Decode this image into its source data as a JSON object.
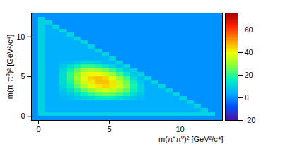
{
  "chart_data": {
    "type": "heatmap",
    "xlabel": "m(π⁺π⁰)² [GeV²/c⁴]",
    "ylabel": "m(π⁻π⁰)² [GeV²/c⁴]",
    "xlim": [
      -0.5,
      13
    ],
    "ylim": [
      -0.5,
      13
    ],
    "xticks": [
      0,
      5,
      10
    ],
    "yticks": [
      0,
      5,
      10
    ],
    "xbins": [
      -0.5,
      0,
      0.5,
      1,
      1.5,
      2,
      2.5,
      3,
      3.5,
      4,
      4.5,
      5,
      5.5,
      6,
      6.5,
      7,
      7.5,
      8,
      8.5,
      9,
      9.5,
      10,
      10.5,
      11,
      11.5,
      12,
      12.5,
      13
    ],
    "ybins": [
      -0.5,
      0,
      0.5,
      1,
      1.5,
      2,
      2.5,
      3,
      3.5,
      4,
      4.5,
      5,
      5.5,
      6,
      6.5,
      7,
      7.5,
      8,
      8.5,
      9,
      9.5,
      10,
      10.5,
      11,
      11.5,
      12,
      12.5,
      13
    ],
    "z": [
      [
        0,
        0,
        0,
        0,
        0,
        0,
        0,
        0,
        0,
        0,
        0,
        0,
        0,
        0,
        0,
        0,
        0,
        0,
        0,
        0,
        0,
        0,
        0,
        0,
        0,
        0,
        0
      ],
      [
        0,
        10,
        10,
        10,
        10,
        10,
        10,
        10,
        10,
        10,
        10,
        10,
        10,
        10,
        10,
        10,
        10,
        10,
        10,
        10,
        10,
        10,
        10,
        10,
        10,
        10,
        0
      ],
      [
        0,
        10,
        4,
        4,
        4,
        4,
        4,
        4,
        4,
        4,
        4,
        4,
        4,
        4,
        4,
        4,
        4,
        4,
        4,
        4,
        4,
        4,
        4,
        4,
        10,
        0,
        0
      ],
      [
        0,
        10,
        4,
        4,
        4,
        4,
        4,
        4,
        4,
        4,
        4,
        4,
        4,
        4,
        4,
        4,
        4,
        4,
        4,
        4,
        4,
        4,
        4,
        10,
        0,
        0,
        0
      ],
      [
        0,
        10,
        4,
        4,
        4,
        4,
        4,
        4,
        4,
        4,
        4,
        4,
        4,
        4,
        4,
        4,
        4,
        4,
        4,
        4,
        4,
        4,
        10,
        0,
        0,
        0,
        0
      ],
      [
        0,
        10,
        4,
        4,
        5,
        6,
        8,
        10,
        12,
        14,
        15,
        14,
        12,
        10,
        8,
        6,
        4,
        4,
        4,
        4,
        4,
        10,
        0,
        0,
        0,
        0,
        0
      ],
      [
        0,
        10,
        4,
        4,
        6,
        8,
        12,
        16,
        20,
        24,
        26,
        25,
        22,
        18,
        12,
        8,
        4,
        4,
        4,
        4,
        10,
        0,
        0,
        0,
        0,
        0,
        0
      ],
      [
        0,
        10,
        4,
        4,
        8,
        12,
        18,
        24,
        30,
        34,
        36,
        34,
        30,
        24,
        16,
        10,
        4,
        4,
        4,
        10,
        0,
        0,
        0,
        0,
        0,
        0,
        0
      ],
      [
        0,
        10,
        4,
        4,
        10,
        16,
        24,
        32,
        38,
        42,
        44,
        42,
        36,
        28,
        18,
        10,
        4,
        4,
        10,
        0,
        0,
        0,
        0,
        0,
        0,
        0,
        0
      ],
      [
        0,
        10,
        4,
        4,
        12,
        18,
        28,
        36,
        42,
        46,
        46,
        42,
        34,
        26,
        16,
        8,
        4,
        10,
        0,
        0,
        0,
        0,
        0,
        0,
        0,
        0,
        0
      ],
      [
        0,
        10,
        4,
        4,
        12,
        20,
        30,
        38,
        44,
        46,
        44,
        38,
        30,
        22,
        12,
        6,
        10,
        0,
        0,
        0,
        0,
        0,
        0,
        0,
        0,
        0,
        0
      ],
      [
        0,
        10,
        4,
        4,
        12,
        20,
        28,
        36,
        40,
        40,
        36,
        30,
        22,
        14,
        8,
        10,
        0,
        0,
        0,
        0,
        0,
        0,
        0,
        0,
        0,
        0,
        0
      ],
      [
        0,
        10,
        4,
        4,
        10,
        16,
        24,
        30,
        32,
        30,
        26,
        20,
        14,
        8,
        10,
        0,
        0,
        0,
        0,
        0,
        0,
        0,
        0,
        0,
        0,
        0,
        0
      ],
      [
        0,
        10,
        4,
        4,
        8,
        12,
        16,
        20,
        20,
        18,
        14,
        10,
        6,
        10,
        0,
        0,
        0,
        0,
        0,
        0,
        0,
        0,
        0,
        0,
        0,
        0,
        0
      ],
      [
        0,
        10,
        4,
        4,
        5,
        6,
        8,
        10,
        10,
        8,
        6,
        5,
        10,
        0,
        0,
        0,
        0,
        0,
        0,
        0,
        0,
        0,
        0,
        0,
        0,
        0,
        0
      ],
      [
        0,
        10,
        4,
        4,
        4,
        4,
        4,
        4,
        4,
        4,
        4,
        10,
        0,
        0,
        0,
        0,
        0,
        0,
        0,
        0,
        0,
        0,
        0,
        0,
        0,
        0,
        0
      ],
      [
        0,
        10,
        4,
        4,
        4,
        4,
        4,
        4,
        4,
        4,
        10,
        0,
        0,
        0,
        0,
        0,
        0,
        0,
        0,
        0,
        0,
        0,
        0,
        0,
        0,
        0,
        0
      ],
      [
        0,
        10,
        4,
        4,
        4,
        4,
        4,
        4,
        4,
        10,
        0,
        0,
        0,
        0,
        0,
        0,
        0,
        0,
        0,
        0,
        0,
        0,
        0,
        0,
        0,
        0,
        0
      ],
      [
        0,
        10,
        4,
        4,
        4,
        4,
        4,
        4,
        10,
        0,
        0,
        0,
        0,
        0,
        0,
        0,
        0,
        0,
        0,
        0,
        0,
        0,
        0,
        0,
        0,
        0,
        0
      ],
      [
        0,
        10,
        4,
        4,
        4,
        4,
        4,
        10,
        0,
        0,
        0,
        0,
        0,
        0,
        0,
        0,
        0,
        0,
        0,
        0,
        0,
        0,
        0,
        0,
        0,
        0,
        0
      ],
      [
        0,
        10,
        4,
        4,
        4,
        4,
        10,
        0,
        0,
        0,
        0,
        0,
        0,
        0,
        0,
        0,
        0,
        0,
        0,
        0,
        0,
        0,
        0,
        0,
        0,
        0,
        0
      ],
      [
        0,
        10,
        4,
        4,
        4,
        10,
        0,
        0,
        0,
        0,
        0,
        0,
        0,
        0,
        0,
        0,
        0,
        0,
        0,
        0,
        0,
        0,
        0,
        0,
        0,
        0,
        0
      ],
      [
        0,
        10,
        4,
        4,
        10,
        0,
        0,
        0,
        0,
        0,
        0,
        0,
        0,
        0,
        0,
        0,
        0,
        0,
        0,
        0,
        0,
        0,
        0,
        0,
        0,
        0,
        0
      ],
      [
        0,
        10,
        4,
        10,
        0,
        0,
        0,
        0,
        0,
        0,
        0,
        0,
        0,
        0,
        0,
        0,
        0,
        0,
        0,
        0,
        0,
        0,
        0,
        0,
        0,
        0,
        0
      ],
      [
        0,
        10,
        10,
        0,
        0,
        0,
        0,
        0,
        0,
        0,
        0,
        0,
        0,
        0,
        0,
        0,
        0,
        0,
        0,
        0,
        0,
        0,
        0,
        0,
        0,
        0,
        0
      ],
      [
        0,
        10,
        0,
        0,
        0,
        0,
        0,
        0,
        0,
        0,
        0,
        0,
        0,
        0,
        0,
        0,
        0,
        0,
        0,
        0,
        0,
        0,
        0,
        0,
        0,
        0,
        0
      ],
      [
        0,
        0,
        0,
        0,
        0,
        0,
        0,
        0,
        0,
        0,
        0,
        0,
        0,
        0,
        0,
        0,
        0,
        0,
        0,
        0,
        0,
        0,
        0,
        0,
        0,
        0,
        0
      ]
    ],
    "zlim": [
      -20,
      75
    ],
    "zticks": [
      -20,
      0,
      20,
      40,
      60
    ]
  }
}
